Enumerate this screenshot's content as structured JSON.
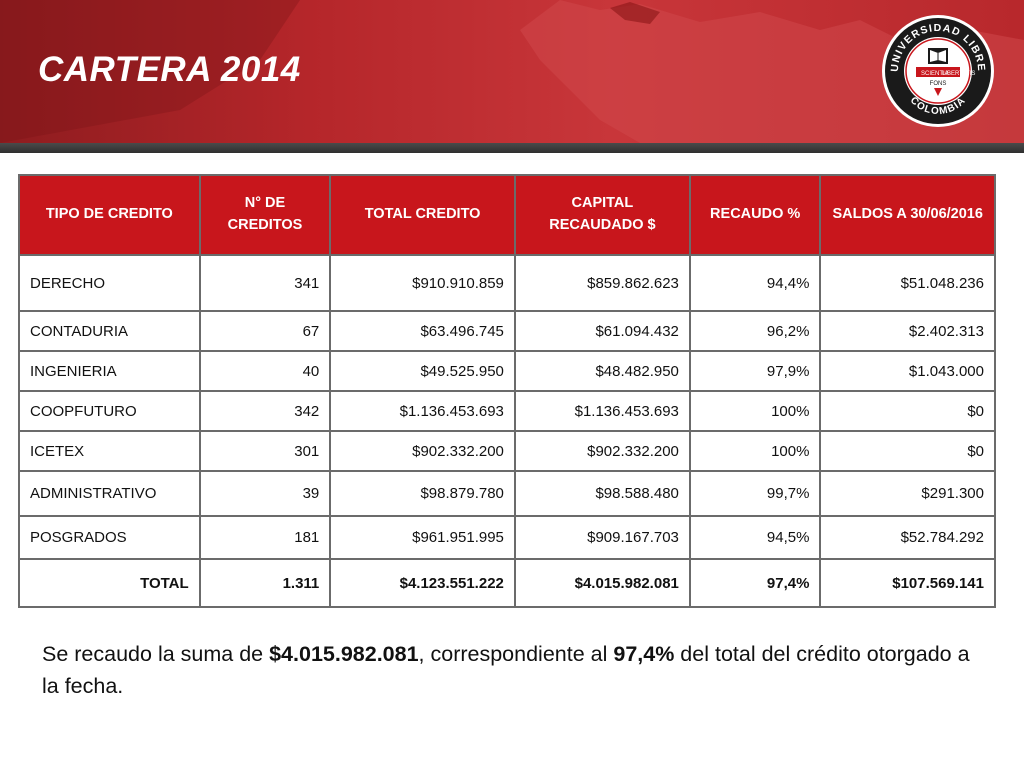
{
  "slide": {
    "title": "CARTERA 2014",
    "logo": {
      "ring_top": "UNIVERSIDAD LIBRE",
      "ring_bottom": "COLOMBIA",
      "motto_left": "SCIENTIA",
      "motto_center": "FONS",
      "motto_right": "LIBERTATIS",
      "colors": {
        "ring": "#1a1a1a",
        "inner": "#ffffff",
        "accent": "#c8161c"
      }
    }
  },
  "table": {
    "headers": [
      "TIPO DE CREDITO",
      "N° DE CREDITOS",
      "TOTAL CREDITO",
      "CAPITAL RECAUDADO $",
      "RECAUDO %",
      "SALDOS A 30/06/2016"
    ],
    "rows": [
      [
        "DERECHO",
        "341",
        "$910.910.859",
        "$859.862.623",
        "94,4%",
        "$51.048.236"
      ],
      [
        "CONTADURIA",
        "67",
        "$63.496.745",
        "$61.094.432",
        "96,2%",
        "$2.402.313"
      ],
      [
        "INGENIERIA",
        "40",
        "$49.525.950",
        "$48.482.950",
        "97,9%",
        "$1.043.000"
      ],
      [
        "COOPFUTURO",
        "342",
        "$1.136.453.693",
        "$1.136.453.693",
        "100%",
        "$0"
      ],
      [
        "ICETEX",
        "301",
        "$902.332.200",
        "$902.332.200",
        "100%",
        "$0"
      ],
      [
        "ADMINISTRATIVO",
        "39",
        "$98.879.780",
        "$98.588.480",
        "99,7%",
        "$291.300"
      ],
      [
        "POSGRADOS",
        "181",
        "$961.951.995",
        "$909.167.703",
        "94,5%",
        "$52.784.292"
      ]
    ],
    "total": [
      "TOTAL",
      "1.311",
      "$4.123.551.222",
      "$4.015.982.081",
      "97,4%",
      "$107.569.141"
    ],
    "header_color": "#c8161c"
  },
  "summary": {
    "part1": "Se recaudo la suma de ",
    "amount": "$4.015.982.081",
    "part2": ", correspondiente al ",
    "percent": "97,4%",
    "part3": " del total del crédito otorgado a la fecha."
  }
}
